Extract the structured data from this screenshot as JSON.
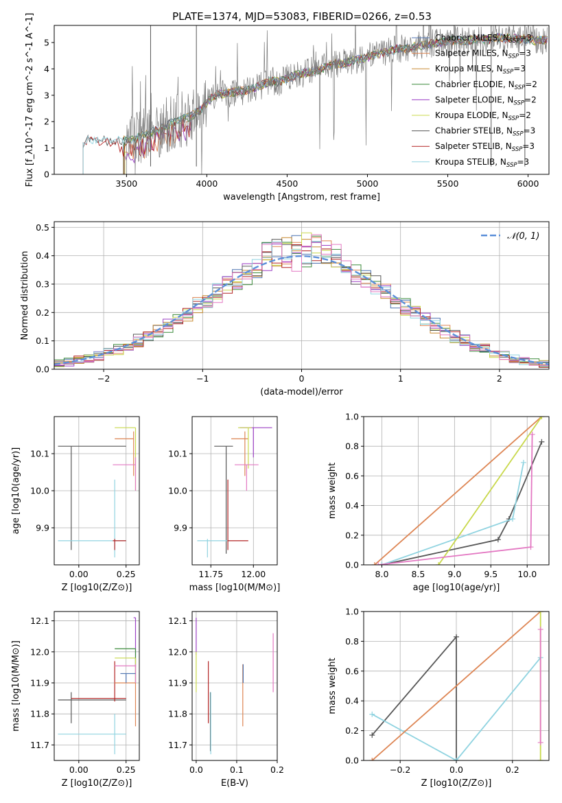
{
  "figure": {
    "title": "PLATE=1374, MJD=53083, FIBERID=0266, z=0.53"
  },
  "colors": {
    "chabrier_miles": "#4c72b0",
    "salpeter_miles": "#dd8452",
    "kroupa_miles": "#c88a30",
    "chabrier_elodie": "#3a8a3a",
    "salpeter_elodie": "#9b3fc4",
    "kroupa_elodie": "#c8d84a",
    "chabrier_stelib": "#555555",
    "salpeter_stelib": "#b22222",
    "kroupa_stelib": "#8fd3e0",
    "extra_pink": "#e377c2",
    "gaussian": "#5b8fd9"
  },
  "chart_data": [
    {
      "id": "spectrum",
      "type": "line",
      "xlabel": "wavelength [Angstrom, rest frame]",
      "ylabel": "Flux [f_λ10^-17 erg cm^-2 s^-1 A^-1]",
      "xlim": [
        3050,
        6130
      ],
      "ylim": [
        0,
        5.65
      ],
      "xticks": [
        3500,
        4000,
        4500,
        5000,
        5500,
        6000
      ],
      "yticks": [
        0,
        1,
        2,
        3,
        4,
        5
      ],
      "grid": false,
      "legend_position": "top-right",
      "legend": [
        {
          "label": "Chabrier MILES, N_SSP=3",
          "color_key": "chabrier_miles"
        },
        {
          "label": "Salpeter MILES, N_SSP=3",
          "color_key": "salpeter_miles"
        },
        {
          "label": "Kroupa MILES, N_SSP=3",
          "color_key": "kroupa_miles"
        },
        {
          "label": "Chabrier ELODIE, N_SSP=2",
          "color_key": "chabrier_elodie"
        },
        {
          "label": "Salpeter ELODIE, N_SSP=2",
          "color_key": "salpeter_elodie"
        },
        {
          "label": "Kroupa ELODIE, N_SSP=2",
          "color_key": "kroupa_elodie"
        },
        {
          "label": "Chabrier STELIB, N_SSP=3",
          "color_key": "chabrier_stelib"
        },
        {
          "label": "Salpeter STELIB, N_SSP=3",
          "color_key": "salpeter_stelib"
        },
        {
          "label": "Kroupa STELIB, N_SSP=3",
          "color_key": "kroupa_stelib"
        }
      ],
      "model_x": [
        3200,
        3220,
        3240,
        3260,
        3280,
        3300,
        3320,
        3340,
        3360,
        3380,
        3400,
        3420,
        3440,
        3460,
        3480,
        3500,
        3550,
        3600,
        3650,
        3700,
        3750,
        3800,
        3850,
        3900,
        3950,
        4000,
        4050,
        4100,
        4150,
        4200,
        4250,
        4300,
        4350,
        4400,
        4450,
        4500,
        4550,
        4600,
        4650,
        4700,
        4750,
        4800,
        4850,
        4900,
        4950,
        5000,
        5050,
        5100,
        5150,
        5200,
        5250,
        5300,
        5350,
        5400,
        5450,
        5500,
        5550,
        5600,
        5650,
        5700,
        5750,
        5800,
        5850,
        5900,
        5950,
        6000,
        6050,
        6100
      ],
      "model_y": [
        0.95,
        1.05,
        1.2,
        1.35,
        1.25,
        1.3,
        1.28,
        1.22,
        1.3,
        1.25,
        1.2,
        1.3,
        1.25,
        1.3,
        1.28,
        1.3,
        1.35,
        1.45,
        1.6,
        1.7,
        1.85,
        2.0,
        2.1,
        2.2,
        2.4,
        2.7,
        3.0,
        3.05,
        3.1,
        3.15,
        3.2,
        3.3,
        3.4,
        3.55,
        3.5,
        3.65,
        3.75,
        3.85,
        3.9,
        3.95,
        4.1,
        4.2,
        4.2,
        4.3,
        4.35,
        4.45,
        4.55,
        4.6,
        4.7,
        4.75,
        4.8,
        4.85,
        4.9,
        4.95,
        5.0,
        5.05,
        5.1,
        5.05,
        5.1,
        5.15,
        5.1,
        5.2,
        5.15,
        5.2,
        5.1,
        5.15,
        5.05,
        5.1
      ],
      "data_start": 3500,
      "data_end": 6120
    },
    {
      "id": "residuals",
      "type": "line",
      "xlabel": "(data-model)/error",
      "ylabel": "Normed distribution",
      "xlim": [
        -2.5,
        2.5
      ],
      "ylim": [
        0,
        0.52
      ],
      "xticks": [
        -2,
        -1,
        0,
        1,
        2
      ],
      "yticks": [
        0.0,
        0.1,
        0.2,
        0.3,
        0.4,
        0.5
      ],
      "grid": true,
      "legend_position": "top-right",
      "legend": [
        {
          "label": "𝒩(0, 1)",
          "color_key": "gaussian"
        }
      ],
      "bin_width": 0.1,
      "bin_start": -2.5
    },
    {
      "id": "age_vs_Z",
      "type": "scatter",
      "xlabel": "Z [log10(Z/Z⊙)]",
      "ylabel": "age  [log10(age/yr)]",
      "xlim": [
        -0.13,
        0.32
      ],
      "ylim": [
        9.8,
        10.2
      ],
      "xticks": [
        0.0,
        0.25
      ],
      "yticks": [
        9.9,
        10.0,
        10.1
      ],
      "grid": true,
      "points": [
        {
          "x": -0.04,
          "y": 10.12,
          "xlo": -0.11,
          "xhi": 0.25,
          "ylo": 9.84,
          "yhi": 10.12,
          "c": "chabrier_stelib"
        },
        {
          "x": 0.19,
          "y": 9.865,
          "xlo": -0.11,
          "xhi": 0.25,
          "ylo": 9.82,
          "yhi": 10.03,
          "c": "kroupa_stelib"
        },
        {
          "x": 0.19,
          "y": 9.865,
          "xlo": 0.18,
          "xhi": 0.25,
          "ylo": 9.84,
          "yhi": 9.87,
          "c": "salpeter_stelib"
        },
        {
          "x": 0.3,
          "y": 10.17,
          "xlo": 0.19,
          "xhi": 0.3,
          "ylo": 10.0,
          "yhi": 10.17,
          "c": "kroupa_elodie"
        },
        {
          "x": 0.29,
          "y": 10.14,
          "xlo": 0.19,
          "xhi": 0.29,
          "ylo": 10.04,
          "yhi": 10.16,
          "c": "salpeter_miles"
        },
        {
          "x": 0.3,
          "y": 10.07,
          "xlo": 0.18,
          "xhi": 0.3,
          "ylo": 10.0,
          "yhi": 10.09,
          "c": "extra_pink"
        }
      ]
    },
    {
      "id": "age_vs_mass",
      "type": "scatter",
      "xlabel": "mass [log10(M/M⊙)]",
      "ylabel": "",
      "xlim": [
        11.64,
        12.14
      ],
      "ylim": [
        9.8,
        10.2
      ],
      "xticks": [
        11.75,
        12.0
      ],
      "yticks": [
        9.9,
        10.0,
        10.1
      ],
      "grid": true,
      "points": [
        {
          "x": 11.84,
          "y": 10.12,
          "xlo": 11.77,
          "xhi": 11.88,
          "ylo": 9.83,
          "yhi": 10.12,
          "c": "chabrier_stelib"
        },
        {
          "x": 11.73,
          "y": 9.865,
          "xlo": 11.67,
          "xhi": 11.86,
          "ylo": 9.82,
          "yhi": 9.87,
          "c": "kroupa_stelib"
        },
        {
          "x": 11.85,
          "y": 9.865,
          "xlo": 11.85,
          "xhi": 11.97,
          "ylo": 9.84,
          "yhi": 10.03,
          "c": "salpeter_stelib"
        },
        {
          "x": 11.95,
          "y": 10.14,
          "xlo": 11.87,
          "xhi": 11.97,
          "ylo": 10.04,
          "yhi": 10.16,
          "c": "salpeter_miles"
        },
        {
          "x": 12.0,
          "y": 10.17,
          "xlo": 11.92,
          "xhi": 12.11,
          "ylo": 10.09,
          "yhi": 10.17,
          "c": "salpeter_elodie"
        },
        {
          "x": 11.97,
          "y": 10.17,
          "xlo": 11.91,
          "xhi": 11.99,
          "ylo": 10.06,
          "yhi": 10.17,
          "c": "kroupa_elodie"
        },
        {
          "x": 11.96,
          "y": 10.07,
          "xlo": 11.89,
          "xhi": 12.03,
          "ylo": 10.0,
          "yhi": 10.07,
          "c": "extra_pink"
        }
      ]
    },
    {
      "id": "mass_weight_vs_age",
      "type": "line",
      "xlabel": "age  [log10(age/yr)]",
      "ylabel": "mass weight",
      "xlim": [
        7.75,
        10.3
      ],
      "ylim": [
        0,
        1.0
      ],
      "xticks": [
        8.0,
        8.5,
        9.0,
        9.5,
        10.0
      ],
      "yticks": [
        0.0,
        0.2,
        0.4,
        0.6,
        0.8,
        1.0
      ],
      "grid": true,
      "series": [
        {
          "c": "chabrier_stelib",
          "x": [
            8.0,
            9.6,
            9.75,
            10.2
          ],
          "y": [
            0.0,
            0.17,
            0.31,
            0.83
          ]
        },
        {
          "c": "kroupa_stelib",
          "x": [
            8.0,
            9.8,
            9.95
          ],
          "y": [
            0.0,
            0.31,
            0.69
          ]
        },
        {
          "c": "salpeter_miles",
          "x": [
            7.9,
            10.2
          ],
          "y": [
            0.0,
            1.0
          ]
        },
        {
          "c": "kroupa_elodie",
          "x": [
            8.78,
            10.2
          ],
          "y": [
            0.0,
            1.0
          ]
        },
        {
          "c": "extra_pink",
          "x": [
            7.95,
            10.05,
            10.07
          ],
          "y": [
            0.0,
            0.12,
            0.88
          ]
        }
      ]
    },
    {
      "id": "mass_vs_Z",
      "type": "scatter",
      "xlabel": "Z [log10(Z/Z⊙)]",
      "ylabel": "mass [log10(M/M⊙)]",
      "xlim": [
        -0.13,
        0.32
      ],
      "ylim": [
        11.65,
        12.13
      ],
      "xticks": [
        0.0,
        0.25
      ],
      "yticks": [
        11.7,
        11.8,
        11.9,
        12.0,
        12.1
      ],
      "grid": true,
      "points": [
        {
          "x": -0.04,
          "y": 11.845,
          "xlo": -0.11,
          "xhi": 0.25,
          "ylo": 11.77,
          "yhi": 11.87,
          "c": "chabrier_stelib"
        },
        {
          "x": 0.19,
          "y": 11.735,
          "xlo": -0.11,
          "xhi": 0.25,
          "ylo": 11.67,
          "yhi": 11.8,
          "c": "kroupa_stelib"
        },
        {
          "x": 0.19,
          "y": 11.85,
          "xlo": -0.04,
          "xhi": 0.25,
          "ylo": 11.84,
          "yhi": 11.97,
          "c": "salpeter_stelib"
        },
        {
          "x": 0.3,
          "y": 12.11,
          "xlo": 0.29,
          "xhi": 0.3,
          "ylo": 11.95,
          "yhi": 12.11,
          "c": "salpeter_elodie"
        },
        {
          "x": 0.3,
          "y": 12.01,
          "xlo": 0.19,
          "xhi": 0.3,
          "ylo": 11.9,
          "yhi": 12.01,
          "c": "chabrier_elodie"
        },
        {
          "x": 0.3,
          "y": 11.98,
          "xlo": 0.19,
          "xhi": 0.3,
          "ylo": 11.9,
          "yhi": 11.98,
          "c": "kroupa_elodie"
        },
        {
          "x": 0.3,
          "y": 11.9,
          "xlo": 0.19,
          "xhi": 0.3,
          "ylo": 11.76,
          "yhi": 11.9,
          "c": "salpeter_miles"
        },
        {
          "x": 0.3,
          "y": 11.955,
          "xlo": 0.19,
          "xhi": 0.3,
          "ylo": 11.9,
          "yhi": 11.96,
          "c": "extra_pink"
        },
        {
          "x": 0.25,
          "y": 11.93,
          "xlo": 0.22,
          "xhi": 0.3,
          "ylo": 11.9,
          "yhi": 11.93,
          "c": "chabrier_miles"
        }
      ]
    },
    {
      "id": "mass_vs_ebv",
      "type": "scatter",
      "xlabel": "E(B-V)",
      "ylabel": "",
      "xlim": [
        -0.01,
        0.2
      ],
      "ylim": [
        11.65,
        12.13
      ],
      "xticks": [
        0.0,
        0.1,
        0.2
      ],
      "yticks": [
        11.7,
        11.8,
        11.9,
        12.0,
        12.1
      ],
      "grid": true,
      "points": [
        {
          "x": 0.0,
          "y": 12.05,
          "ylo": 11.99,
          "yhi": 12.11,
          "c": "salpeter_elodie"
        },
        {
          "x": 0.0,
          "y": 11.95,
          "ylo": 11.87,
          "yhi": 12.0,
          "c": "kroupa_elodie"
        },
        {
          "x": 0.03,
          "y": 11.87,
          "ylo": 11.77,
          "yhi": 11.97,
          "c": "salpeter_stelib"
        },
        {
          "x": 0.035,
          "y": 11.78,
          "ylo": 11.68,
          "yhi": 11.87,
          "c": "chabrier_stelib"
        },
        {
          "x": 0.036,
          "y": 11.78,
          "ylo": 11.67,
          "yhi": 11.87,
          "c": "kroupa_stelib"
        },
        {
          "x": 0.115,
          "y": 11.85,
          "ylo": 11.76,
          "yhi": 11.96,
          "c": "salpeter_miles"
        },
        {
          "x": 0.116,
          "y": 11.93,
          "ylo": 11.9,
          "yhi": 11.96,
          "c": "chabrier_miles"
        },
        {
          "x": 0.19,
          "y": 11.96,
          "ylo": 11.87,
          "yhi": 12.06,
          "c": "extra_pink"
        }
      ]
    },
    {
      "id": "mass_weight_vs_Z",
      "type": "line",
      "xlabel": "Z [log10(Z/Z⊙)]",
      "ylabel": "mass weight",
      "xlim": [
        -0.33,
        0.33
      ],
      "ylim": [
        0,
        1.0
      ],
      "xticks": [
        -0.2,
        0.0,
        0.2
      ],
      "yticks": [
        0.0,
        0.2,
        0.4,
        0.6,
        0.8,
        1.0
      ],
      "grid": true,
      "series": [
        {
          "c": "chabrier_stelib",
          "x": [
            -0.3,
            0.0,
            0.0
          ],
          "y": [
            0.17,
            0.83,
            0.0
          ]
        },
        {
          "c": "kroupa_stelib",
          "x": [
            -0.3,
            0.0,
            0.3
          ],
          "y": [
            0.31,
            0.0,
            0.69
          ]
        },
        {
          "c": "salpeter_miles",
          "x": [
            -0.3,
            0.3
          ],
          "y": [
            0.0,
            1.0
          ]
        },
        {
          "c": "kroupa_elodie",
          "x": [
            0.3,
            0.3
          ],
          "y": [
            0.0,
            1.0
          ]
        },
        {
          "c": "extra_pink",
          "x": [
            0.3,
            0.3
          ],
          "y": [
            0.12,
            0.88
          ]
        }
      ]
    }
  ]
}
